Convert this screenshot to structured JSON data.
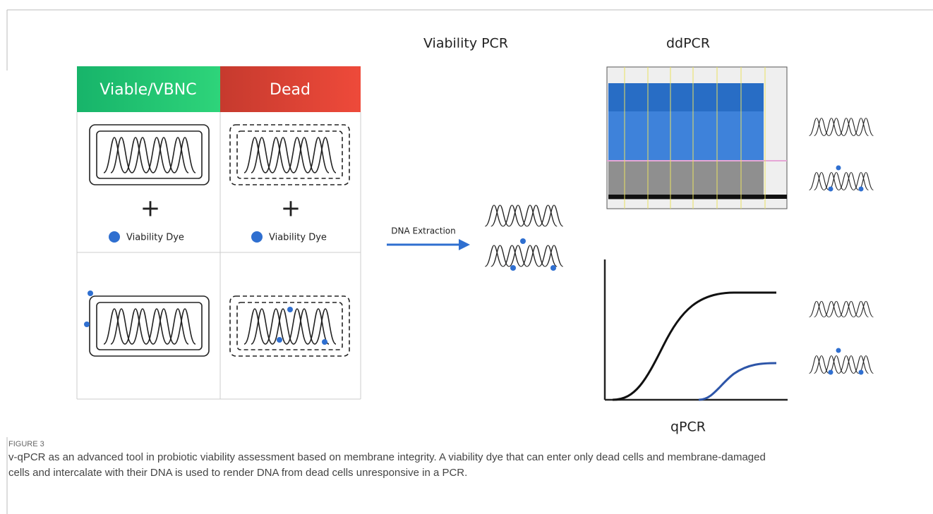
{
  "figure": {
    "vpcr_title": "Viability PCR",
    "ddpcr_title": "ddPCR",
    "qpcr_title": "qPCR",
    "table": {
      "headers": [
        "Viable/VBNC",
        "Dead"
      ],
      "plus": [
        "+",
        "+"
      ],
      "dye_labels": [
        "Viability Dye",
        "Viability Dye"
      ]
    },
    "arrow_label": "DNA Extraction",
    "label": "FIGURE 3",
    "caption": "v-qPCR as an advanced tool in probiotic viability assessment based on membrane integrity. A viability dye that can enter only dead cells and membrane-damaged cells and intercalate with their DNA is used to render DNA from dead cells unresponsive in a PCR."
  }
}
